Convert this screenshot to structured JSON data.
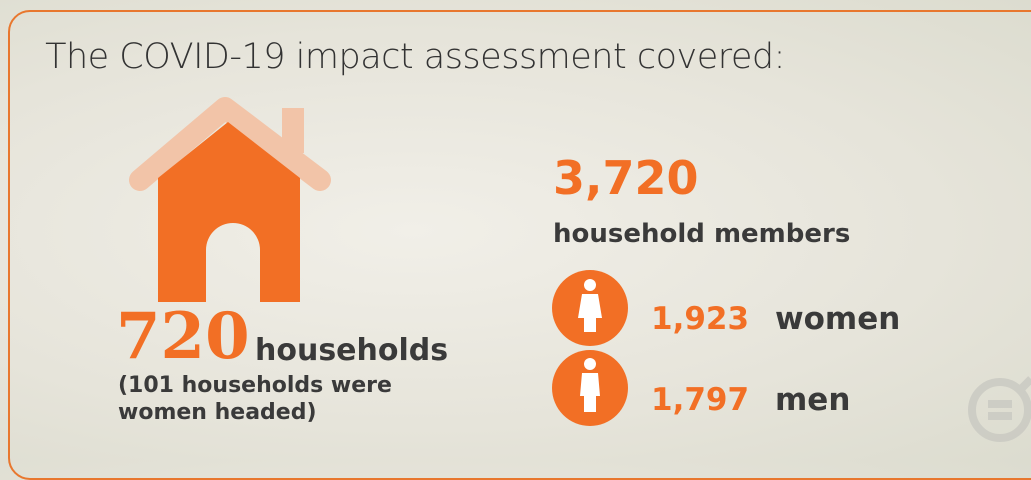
{
  "title": "The COVID-19 impact assessment covered:",
  "households": {
    "number": "720",
    "label": "households",
    "note": "(101 households were women headed)"
  },
  "members": {
    "number": "3,720",
    "label": "household members"
  },
  "women": {
    "number": "1,923",
    "label": "women"
  },
  "men": {
    "number": "1,797",
    "label": "men"
  }
}
